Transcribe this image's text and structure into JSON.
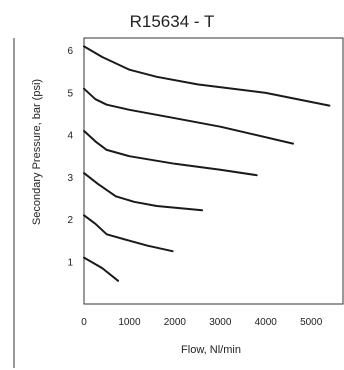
{
  "chart_data": {
    "type": "line",
    "title": "R15634 - T",
    "xlabel": "Flow, Nl/min",
    "ylabel": "Secondary Pressure, bar (psi)",
    "xlim": [
      0,
      5700
    ],
    "ylim": [
      0,
      6.3
    ],
    "xticks": [
      0,
      1000,
      2000,
      3000,
      4000,
      5000
    ],
    "xtick_labels": [
      "0",
      "1000",
      "2000",
      "3000",
      "4000",
      "5000"
    ],
    "yticks": [
      1,
      2,
      3,
      4,
      5,
      6
    ],
    "ytick_labels": [
      "1",
      "2",
      "3",
      "4",
      "5",
      "6"
    ],
    "grid": false,
    "series": [
      {
        "points": [
          [
            0,
            6.1
          ],
          [
            400,
            5.85
          ],
          [
            1000,
            5.55
          ],
          [
            1600,
            5.38
          ],
          [
            2500,
            5.2
          ],
          [
            4000,
            5.0
          ],
          [
            5400,
            4.7
          ]
        ]
      },
      {
        "points": [
          [
            0,
            5.1
          ],
          [
            250,
            4.85
          ],
          [
            500,
            4.72
          ],
          [
            1000,
            4.6
          ],
          [
            2000,
            4.4
          ],
          [
            3000,
            4.2
          ],
          [
            4600,
            3.8
          ]
        ]
      },
      {
        "points": [
          [
            0,
            4.1
          ],
          [
            250,
            3.85
          ],
          [
            500,
            3.65
          ],
          [
            1000,
            3.5
          ],
          [
            2000,
            3.32
          ],
          [
            3000,
            3.18
          ],
          [
            3800,
            3.05
          ]
        ]
      },
      {
        "points": [
          [
            0,
            3.1
          ],
          [
            300,
            2.85
          ],
          [
            700,
            2.55
          ],
          [
            1100,
            2.42
          ],
          [
            1600,
            2.32
          ],
          [
            2600,
            2.22
          ]
        ]
      },
      {
        "points": [
          [
            0,
            2.1
          ],
          [
            250,
            1.9
          ],
          [
            500,
            1.65
          ],
          [
            1000,
            1.5
          ],
          [
            1400,
            1.38
          ],
          [
            1950,
            1.25
          ]
        ]
      },
      {
        "points": [
          [
            0,
            1.1
          ],
          [
            400,
            0.85
          ],
          [
            750,
            0.55
          ]
        ]
      }
    ]
  }
}
